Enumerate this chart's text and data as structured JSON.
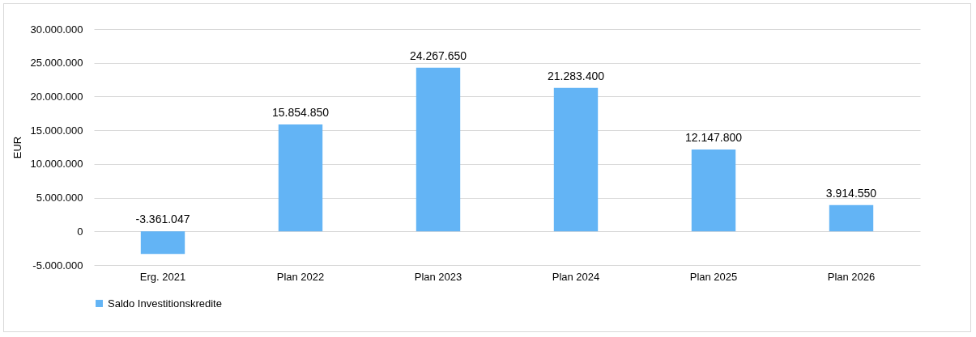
{
  "chart_data": {
    "type": "bar",
    "ylabel": "EUR",
    "categories": [
      "Erg. 2021",
      "Plan 2022",
      "Plan 2023",
      "Plan 2024",
      "Plan 2025",
      "Plan 2026"
    ],
    "series": [
      {
        "name": "Saldo Investitionskredite",
        "color": "#63b4f5",
        "values": [
          -3361047,
          15854850,
          24267650,
          21283400,
          12147800,
          3914550
        ],
        "value_labels": [
          "-3.361.047",
          "15.854.850",
          "24.267.650",
          "21.283.400",
          "12.147.800",
          "3.914.550"
        ]
      }
    ],
    "ylim": [
      -5000000,
      30000000
    ],
    "yticks": [
      {
        "value": -5000000,
        "label": "-5.000.000"
      },
      0,
      {
        "value": 5000000,
        "label": "5.000.000"
      },
      {
        "value": 10000000,
        "label": "10.000.000"
      },
      {
        "value": 15000000,
        "label": "15.000.000"
      },
      {
        "value": 20000000,
        "label": "20.000.000"
      },
      {
        "value": 25000000,
        "label": "25.000.000"
      },
      {
        "value": 30000000,
        "label": "30.000.000"
      }
    ],
    "grid": true,
    "legend": "bottom"
  }
}
